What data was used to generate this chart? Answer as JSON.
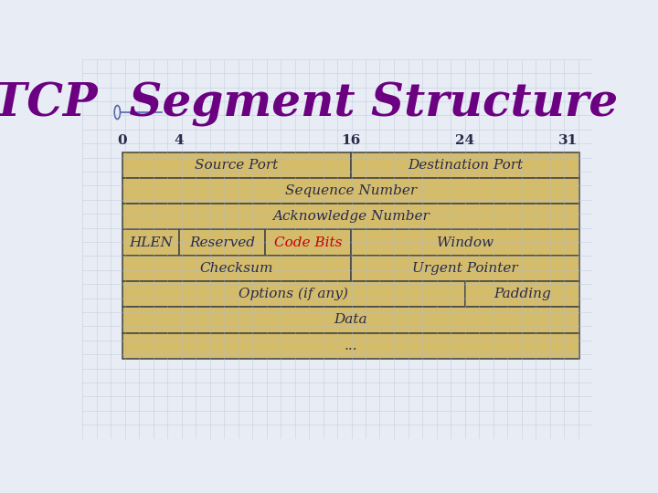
{
  "title": "TCP  Segment Structure",
  "title_color": "#6B0080",
  "title_fontsize": 36,
  "title_font": "serif",
  "background_color": "#E8EDF5",
  "grid_color": "#B0BDD0",
  "cell_fill": "#D4BC6A",
  "cell_edge": "#4A4A4A",
  "text_color": "#2A2A4A",
  "code_bits_color": "#CC0000",
  "bit_labels": [
    "0",
    "4",
    "16",
    "24",
    "31"
  ],
  "bit_positions": [
    0,
    4,
    16,
    24,
    31
  ],
  "rows": [
    {
      "cells": [
        {
          "label": "Source Port",
          "start": 0,
          "end": 16,
          "color": "#D4BC6A",
          "text_color": "#2A2A4A"
        },
        {
          "label": "Destination Port",
          "start": 16,
          "end": 32,
          "color": "#D4BC6A",
          "text_color": "#2A2A4A"
        }
      ]
    },
    {
      "cells": [
        {
          "label": "Sequence Number",
          "start": 0,
          "end": 32,
          "color": "#D4BC6A",
          "text_color": "#2A2A4A"
        }
      ]
    },
    {
      "cells": [
        {
          "label": "Acknowledge Number",
          "start": 0,
          "end": 32,
          "color": "#D4BC6A",
          "text_color": "#2A2A4A"
        }
      ]
    },
    {
      "cells": [
        {
          "label": "HLEN",
          "start": 0,
          "end": 4,
          "color": "#D4BC6A",
          "text_color": "#2A2A4A"
        },
        {
          "label": "Reserved",
          "start": 4,
          "end": 10,
          "color": "#D4BC6A",
          "text_color": "#2A2A4A"
        },
        {
          "label": "Code Bits",
          "start": 10,
          "end": 16,
          "color": "#D4BC6A",
          "text_color": "#CC0000"
        },
        {
          "label": "Window",
          "start": 16,
          "end": 32,
          "color": "#D4BC6A",
          "text_color": "#2A2A4A"
        }
      ]
    },
    {
      "cells": [
        {
          "label": "Checksum",
          "start": 0,
          "end": 16,
          "color": "#D4BC6A",
          "text_color": "#2A2A4A"
        },
        {
          "label": "Urgent Pointer",
          "start": 16,
          "end": 32,
          "color": "#D4BC6A",
          "text_color": "#2A2A4A"
        }
      ]
    },
    {
      "cells": [
        {
          "label": "Options (if any)",
          "start": 0,
          "end": 24,
          "color": "#D4BC6A",
          "text_color": "#2A2A4A"
        },
        {
          "label": "Padding",
          "start": 24,
          "end": 32,
          "color": "#D4BC6A",
          "text_color": "#2A2A4A"
        }
      ]
    },
    {
      "cells": [
        {
          "label": "Data",
          "start": 0,
          "end": 32,
          "color": "#D4BC6A",
          "text_color": "#2A2A4A"
        }
      ]
    },
    {
      "cells": [
        {
          "label": "...",
          "start": 0,
          "end": 32,
          "color": "#D4BC6A",
          "text_color": "#2A2A4A"
        }
      ]
    }
  ]
}
